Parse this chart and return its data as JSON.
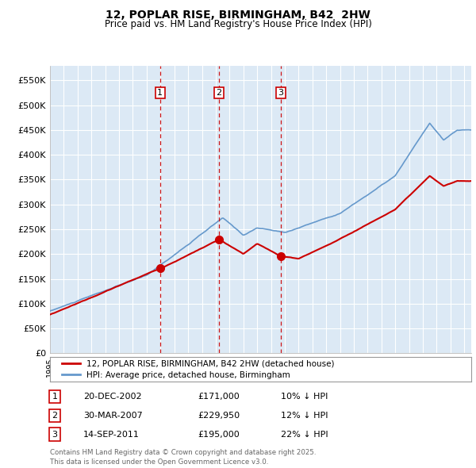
{
  "title_line1": "12, POPLAR RISE, BIRMINGHAM, B42  2HW",
  "title_line2": "Price paid vs. HM Land Registry's House Price Index (HPI)",
  "ylim": [
    0,
    580000
  ],
  "yticks": [
    0,
    50000,
    100000,
    150000,
    200000,
    250000,
    300000,
    350000,
    400000,
    450000,
    500000,
    550000
  ],
  "ytick_labels": [
    "£0",
    "£50K",
    "£100K",
    "£150K",
    "£200K",
    "£250K",
    "£300K",
    "£350K",
    "£400K",
    "£450K",
    "£500K",
    "£550K"
  ],
  "bg_color": "#dce9f5",
  "grid_color": "#ffffff",
  "red_line_color": "#cc0000",
  "blue_line_color": "#6699cc",
  "vline_color": "#cc0000",
  "marker_color": "#cc0000",
  "transaction_dates": [
    2002.97,
    2007.24,
    2011.71
  ],
  "transaction_prices": [
    171000,
    229950,
    195000
  ],
  "transaction_labels": [
    "1",
    "2",
    "3"
  ],
  "legend_red": "12, POPLAR RISE, BIRMINGHAM, B42 2HW (detached house)",
  "legend_blue": "HPI: Average price, detached house, Birmingham",
  "table_rows": [
    [
      "1",
      "20-DEC-2002",
      "£171,000",
      "10% ↓ HPI"
    ],
    [
      "2",
      "30-MAR-2007",
      "£229,950",
      "12% ↓ HPI"
    ],
    [
      "3",
      "14-SEP-2011",
      "£195,000",
      "22% ↓ HPI"
    ]
  ],
  "footer_text": "Contains HM Land Registry data © Crown copyright and database right 2025.\nThis data is licensed under the Open Government Licence v3.0.",
  "xmin": 1995.0,
  "xmax": 2025.5
}
